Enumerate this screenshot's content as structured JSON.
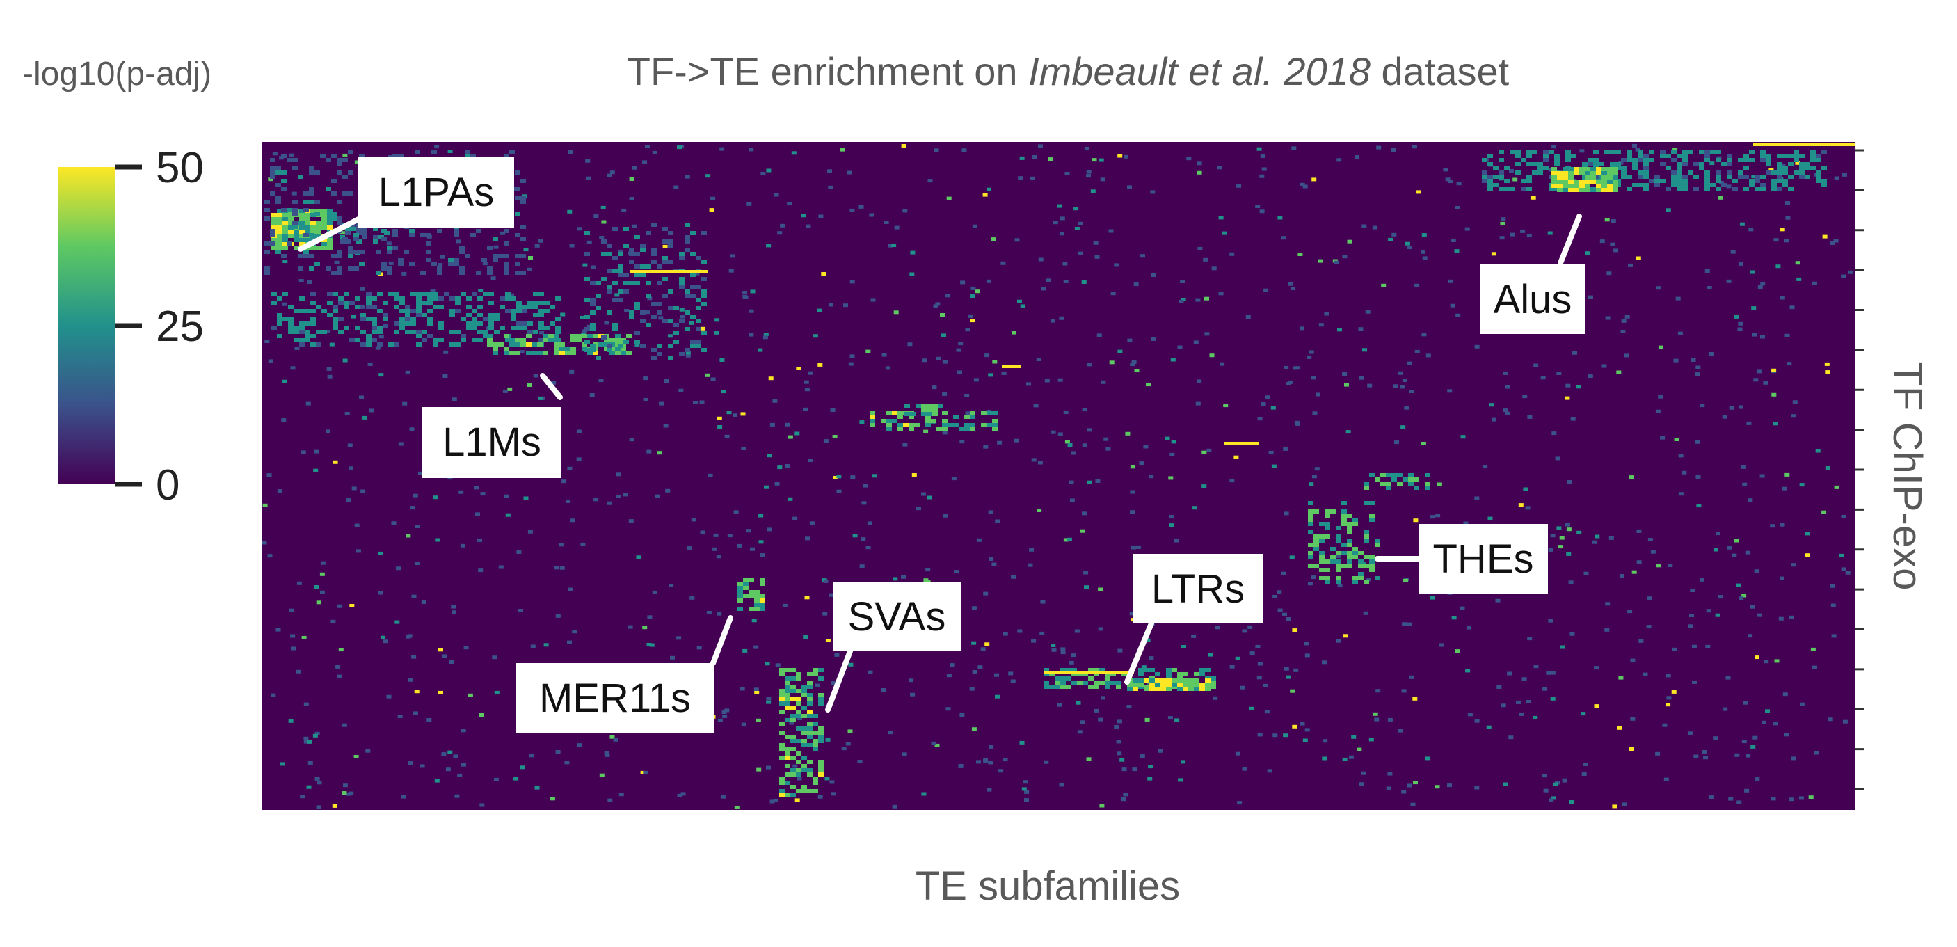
{
  "chart_data": {
    "type": "heatmap",
    "title": {
      "prefix": "TF->TE enrichment on ",
      "italic": "Imbeault et al. 2018",
      "suffix": " dataset"
    },
    "xlabel": "TE subfamilies",
    "ylabel": "TF ChIP-exo",
    "colorbar": {
      "label": "-log10(p-adj)",
      "ticks": [
        0,
        25,
        50
      ],
      "range": [
        0,
        50
      ],
      "colormap": "viridis",
      "colors": [
        "#440154",
        "#3b528b",
        "#21918c",
        "#5ec962",
        "#fde725"
      ]
    },
    "background_color": "#440154",
    "grid": false,
    "y_tick_count": 17,
    "annotations": [
      {
        "label": "L1PAs"
      },
      {
        "label": "L1Ms"
      },
      {
        "label": "Alus"
      },
      {
        "label": "THEs"
      },
      {
        "label": "LTRs"
      },
      {
        "label": "SVAs"
      },
      {
        "label": "MER11s"
      }
    ]
  }
}
